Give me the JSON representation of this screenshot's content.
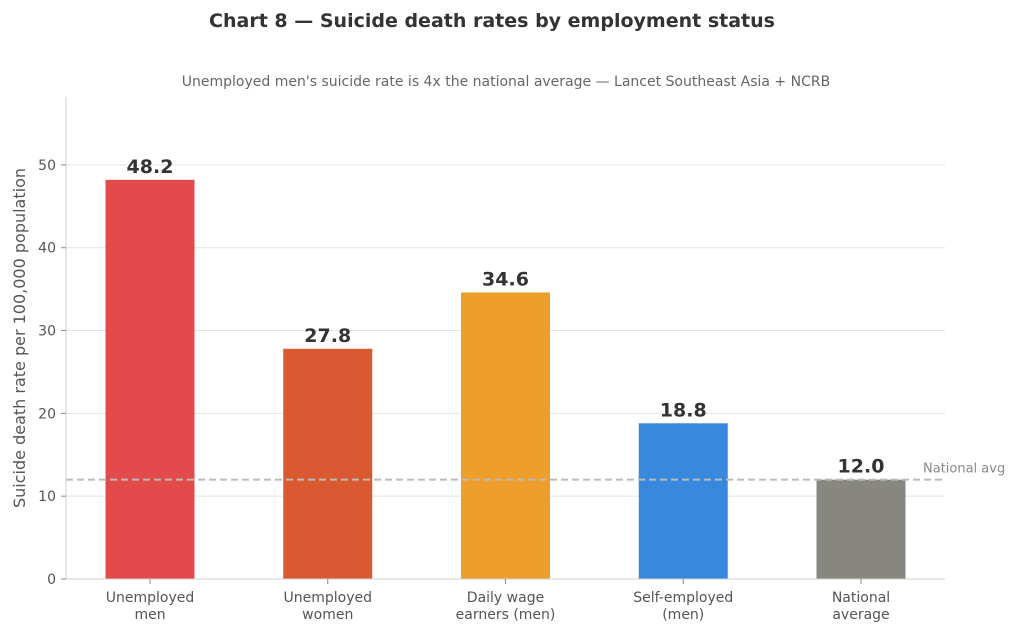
{
  "chart_data": {
    "type": "bar",
    "title": "Chart 8 — Suicide death rates by employment status",
    "subtitle": "Unemployed men's suicide rate is 4x the national average — Lancet Southeast Asia + NCRB",
    "xlabel": "",
    "ylabel": "Suicide death rate per 100,000 population",
    "ylim": [
      0,
      58.2
    ],
    "yticks": [
      0,
      10,
      20,
      30,
      40,
      50
    ],
    "ytick_labels": [
      "0",
      "10",
      "20",
      "30",
      "40",
      "50"
    ],
    "grid": "horizontal",
    "categories": [
      [
        "Unemployed",
        "men"
      ],
      [
        "Unemployed",
        "women"
      ],
      [
        "Daily wage",
        "earners (men)"
      ],
      [
        "Self-employed",
        "(men)"
      ],
      [
        "National",
        "average"
      ]
    ],
    "values": [
      48.2,
      27.8,
      34.6,
      18.8,
      12.0
    ],
    "value_labels": [
      "48.2",
      "27.8",
      "34.6",
      "18.8",
      "12.0"
    ],
    "colors": [
      "#E34A4C",
      "#D95A30",
      "#EE9E2A",
      "#3889DD",
      "#87877F"
    ],
    "reference_line": {
      "value": 12.0,
      "label": "National avg",
      "style": "dashed",
      "color": "#BBBBBB"
    }
  }
}
